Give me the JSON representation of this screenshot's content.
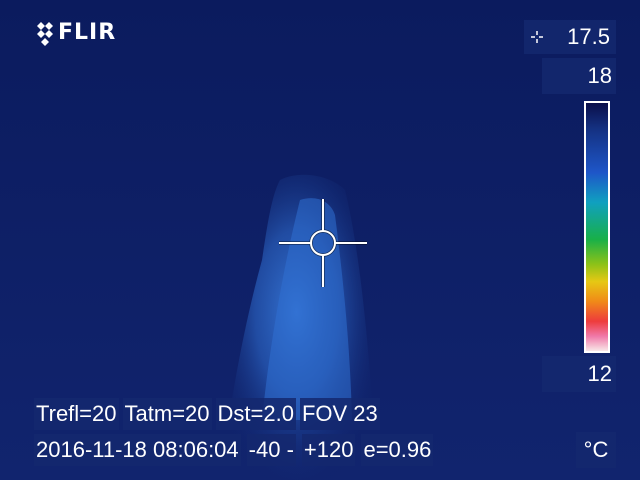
{
  "brand": {
    "logo_text": "FLIR",
    "logo_icon": "flir-diamond-logo-icon"
  },
  "spot_meter": {
    "icon": "spot-crosshair-icon",
    "value": "17.5"
  },
  "scale": {
    "max": "18",
    "min": "12",
    "unit": "°C",
    "palette": [
      "#0a0f4a",
      "#1e56c8",
      "#10a0c0",
      "#18b048",
      "#e6c814",
      "#f08a18",
      "#ee3c3c",
      "#f078a8",
      "#f8e8e8"
    ]
  },
  "params": {
    "trefl": "Trefl=20",
    "tatm": "Tatm=20",
    "dst": "Dst=2.0",
    "fov": "FOV 23"
  },
  "info": {
    "datetime": "2016-11-18 08:06:04",
    "range_low": "-40 -",
    "range_high": "+120",
    "emissivity": "e=0.96"
  },
  "colors": {
    "background": "#0d1f66",
    "plume": "#2e6fd0",
    "overlay_text": "#ffffff"
  }
}
